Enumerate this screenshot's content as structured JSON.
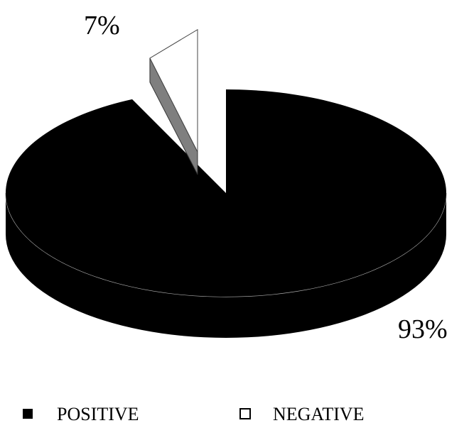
{
  "chart_data": {
    "type": "pie",
    "categories": [
      "POSITIVE",
      "NEGATIVE"
    ],
    "values": [
      93,
      7
    ],
    "labels": [
      "93%",
      "7%"
    ],
    "colors": {
      "POSITIVE": "#000000",
      "NEGATIVE": "#ffffff",
      "negative_side": "#7f7f7f",
      "edge": "#b0b0b0"
    },
    "three_d": true,
    "exploded": "NEGATIVE",
    "legend": {
      "placement": "bottom",
      "entries": [
        "POSITIVE",
        "NEGATIVE"
      ]
    }
  }
}
